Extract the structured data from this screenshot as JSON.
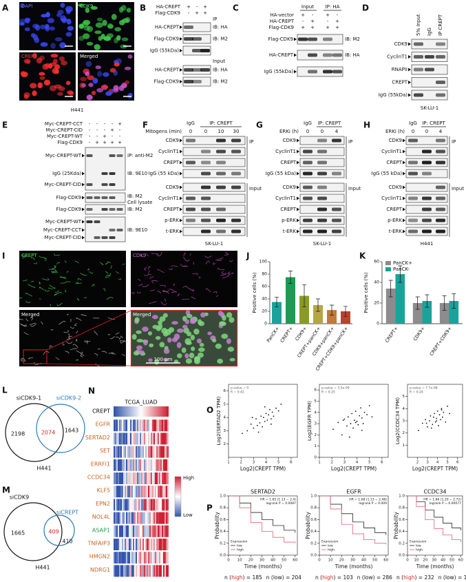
{
  "figure": {
    "A": {
      "letter": "A",
      "channels": [
        "DAPI",
        "CDK9",
        "CREPT",
        "Merged"
      ],
      "cell_line": "H441"
    },
    "B": {
      "letter": "B",
      "conditions": [
        {
          "label": "HA-CREPT",
          "signs": [
            "+",
            "-",
            "+"
          ]
        },
        {
          "label": "Flag-CDK9",
          "signs": [
            "-",
            "+",
            "+"
          ]
        }
      ],
      "blots": [
        {
          "label": "HA-CREPT",
          "ib": "IB: HA"
        },
        {
          "label": "Flag-CDK9",
          "ib": "IB: M2"
        },
        {
          "label": "IgG (55kDa)"
        },
        {
          "label": "HA-CREPT",
          "ib": "IB: HA"
        },
        {
          "label": "Flag-CDK9",
          "ib": "IB: M2"
        }
      ],
      "groups": [
        "IP",
        "Input"
      ]
    },
    "C": {
      "letter": "C",
      "headers": [
        "Input",
        "IP: HA"
      ],
      "conditions": [
        {
          "label": "HA-vector",
          "signs": [
            "+",
            "-",
            "+",
            "-"
          ]
        },
        {
          "label": "HA-CREPT",
          "signs": [
            "-",
            "+",
            "-",
            "+"
          ]
        },
        {
          "label": "Flag-CDK9",
          "signs": [
            "+",
            "+",
            "+",
            "+"
          ]
        }
      ],
      "blots": [
        {
          "label": "Flag-CDK9",
          "ib": "IB: M2"
        },
        {
          "label": "HA-CREPT",
          "ib": "IB: HA"
        },
        {
          "label": "IgG (55kDa)"
        }
      ]
    },
    "D": {
      "letter": "D",
      "lanes": [
        "5% Input",
        "IgG",
        "IP CREPT"
      ],
      "blots": [
        "CDK9",
        "CyclinT1",
        "RNAPII",
        "CREPT",
        "IgG (55kDa)"
      ],
      "cell_line": "SK-LU-1"
    },
    "E": {
      "letter": "E",
      "conditions": [
        {
          "label": "Myc-CREPT-CCT",
          "signs": [
            "-",
            "-",
            "-",
            "-",
            "+"
          ]
        },
        {
          "label": "Myc-CREPT-CID",
          "signs": [
            "-",
            "-",
            "-",
            "+",
            "-"
          ]
        },
        {
          "label": "Myc-CREPT-WT",
          "signs": [
            "-",
            "-",
            "+",
            "-",
            "-"
          ]
        },
        {
          "label": "Flag-CDK9",
          "signs": [
            "-",
            "+",
            "+",
            "+",
            "+"
          ]
        }
      ],
      "blots": [
        "Myc-CREPT-WT",
        "IgG (25Kda)",
        "Myc-CREPT-CID",
        "Flag-CDK9",
        "Flag-CDK9",
        "Myc-CREPT-WT",
        "Myc-CREPT-CCT",
        "Myc-CREPT-CID"
      ],
      "side": [
        "IP: anti-M2",
        "IB: 9E10",
        "IB: M2",
        "Cell lysate",
        "IB: M2",
        "IB: 9E10"
      ]
    },
    "F": {
      "letter": "F",
      "headers": [
        "IgG",
        "IP: CREPT"
      ],
      "treatment": {
        "label": "Mitogens (min)",
        "values": [
          "0",
          "0",
          "10",
          "30"
        ]
      },
      "ip_blots": [
        "CDK9",
        "CyclinT1",
        "CREPT",
        "IgG (55 kDa)"
      ],
      "input_blots": [
        "CDK9",
        "CyclinT1",
        "CREPT",
        "p-ERK",
        "t-ERK"
      ],
      "groups": [
        "IP",
        "Input"
      ],
      "cell_line": "SK-LU-1"
    },
    "G": {
      "letter": "G",
      "headers": [
        "IgG",
        "IP: CREPT"
      ],
      "treatment": {
        "label": "ERKi (h)",
        "values": [
          "0",
          "0",
          "4"
        ]
      },
      "ip_blots": [
        "CDK9",
        "CyclinT1",
        "CREPT",
        "IgG (55 kDa)"
      ],
      "input_blots": [
        "CDK9",
        "CyclinT1",
        "CREPT",
        "p-ERK",
        "t-ERK"
      ],
      "groups": [
        "IP",
        "Input"
      ],
      "cell_line": "SK-LU-1"
    },
    "H": {
      "letter": "H",
      "headers": [
        "IgG",
        "IP: CREPT"
      ],
      "treatment": {
        "label": "ERKi (h)",
        "values": [
          "0",
          "0",
          "4"
        ]
      },
      "ip_blots": [
        "CDK9",
        "CyclinT1",
        "CREPT",
        "IgG (55 kDa)"
      ],
      "input_blots": [
        "CDK9",
        "CyclinT1",
        "CREPT",
        "p-ERK",
        "t-ERK"
      ],
      "groups": [
        "IP",
        "Input"
      ],
      "cell_line": "H441"
    },
    "I": {
      "letter": "I",
      "labels": [
        "CREPT",
        "CDK9",
        "Merged",
        "Merged"
      ],
      "scale": "100 μm"
    },
    "L": {
      "letter": "L",
      "sets": [
        "siCDK9-1",
        "siCDK9-2"
      ],
      "counts": [
        2198,
        2074,
        1643
      ],
      "cell_line": "H441"
    },
    "M": {
      "letter": "M",
      "sets": [
        "siCDK9",
        "siCREPT"
      ],
      "counts": [
        1665,
        409,
        410
      ],
      "cell_line": "H441"
    },
    "N": {
      "letter": "N",
      "title": "TCGA_LUAD",
      "genes": [
        {
          "name": "CREPT",
          "color": "#000000"
        },
        {
          "name": "EGFR",
          "color": "#c8641e"
        },
        {
          "name": "SERTAD2",
          "color": "#c8641e"
        },
        {
          "name": "SET",
          "color": "#c8641e"
        },
        {
          "name": "ERRFI1",
          "color": "#c8641e"
        },
        {
          "name": "CCDC34",
          "color": "#c8641e"
        },
        {
          "name": "KLF5",
          "color": "#c8641e"
        },
        {
          "name": "EPN2",
          "color": "#c8641e"
        },
        {
          "name": "NOL4L",
          "color": "#c8641e"
        },
        {
          "name": "ASAP1",
          "color": "#2a9d4a"
        },
        {
          "name": "TNFAIP3",
          "color": "#c8641e"
        },
        {
          "name": "HMGN2",
          "color": "#c8641e"
        },
        {
          "name": "NDRG1",
          "color": "#c8641e"
        }
      ],
      "legend": [
        "High",
        "Low"
      ]
    },
    "O": {
      "letter": "O"
    },
    "P": {
      "letter": "P"
    }
  },
  "chart_data": [
    {
      "panel": "J",
      "type": "bar",
      "ylabel": "Positive cells (%)",
      "categories": [
        "PanCK+",
        "CREPT+",
        "CDK9+",
        "CREPT+panCK+",
        "CDK9+panCK+",
        "CREPT+CDK9+panCK+"
      ],
      "values": [
        35,
        75,
        45,
        30,
        22,
        20
      ],
      "errors": [
        8,
        10,
        18,
        10,
        8,
        8
      ],
      "colors": [
        "#1aa39a",
        "#1f9a54",
        "#8a9a2a",
        "#b5a642",
        "#c07a3a",
        "#b8432e"
      ],
      "ylim": [
        0,
        100
      ],
      "yticks": [
        0,
        20,
        40,
        60,
        80,
        100
      ]
    },
    {
      "panel": "K",
      "type": "grouped_bar",
      "ylabel": "Positive cells (%)",
      "categories": [
        "CREPT+",
        "CDK9+",
        "CREPT+CDK9+"
      ],
      "series": [
        {
          "name": "PanCK+",
          "color": "#8c8c8c",
          "values": [
            34,
            20,
            20
          ],
          "errors": [
            8,
            6,
            7
          ]
        },
        {
          "name": "PanCK-",
          "color": "#1aa39a",
          "values": [
            48,
            22,
            22
          ],
          "errors": [
            8,
            6,
            7
          ]
        }
      ],
      "ylim": [
        0,
        60
      ],
      "yticks": [
        0,
        20,
        40,
        60
      ],
      "legend": "top-left"
    },
    {
      "panel": "O",
      "type": "scatter",
      "ylabel": "Log2(SERTAD2 TPM)",
      "xlabel": "Log2(CREPT TPM)",
      "annotation": [
        "p-value = 0",
        "R = 0.42"
      ],
      "x": [
        2.1,
        2.5,
        2.8,
        3.0,
        3.2,
        3.3,
        3.5,
        3.6,
        3.7,
        3.8,
        3.9,
        4.0,
        4.1,
        4.2,
        4.3,
        4.4,
        4.5,
        4.6,
        4.8,
        5.0,
        5.2,
        3.4,
        3.9,
        4.4,
        2.9
      ],
      "y": [
        2.8,
        3.0,
        3.5,
        3.2,
        3.9,
        3.4,
        3.6,
        4.1,
        3.3,
        4.0,
        3.7,
        4.3,
        3.8,
        4.2,
        4.6,
        3.9,
        4.4,
        4.1,
        4.7,
        4.5,
        5.0,
        2.9,
        4.8,
        3.5,
        4.0
      ],
      "xlim": [
        1,
        6.5
      ],
      "xticks": [
        1,
        2,
        3,
        4,
        5,
        6
      ],
      "ylim": [
        1,
        6.5
      ],
      "yticks": [
        2,
        3,
        4,
        5,
        6
      ]
    },
    {
      "type": "scatter",
      "ylabel": "Log2(EGFR TPM)",
      "xlabel": "Log2(CREPT TPM)",
      "annotation": [
        "p-value = 3.5e-09",
        "R = 0.25"
      ],
      "x": [
        2.1,
        2.5,
        2.8,
        3.0,
        3.2,
        3.3,
        3.5,
        3.6,
        3.7,
        3.8,
        3.9,
        4.0,
        4.1,
        4.2,
        4.3,
        4.4,
        4.5,
        4.6,
        4.8,
        5.0,
        5.2,
        3.4,
        3.9,
        4.4,
        2.9
      ],
      "y": [
        2.5,
        3.1,
        2.0,
        3.4,
        2.8,
        3.6,
        3.0,
        3.9,
        2.6,
        3.3,
        4.1,
        3.2,
        2.9,
        3.7,
        4.4,
        3.5,
        3.0,
        4.0,
        3.8,
        4.6,
        3.6,
        1.8,
        3.1,
        2.4,
        3.3
      ],
      "xlim": [
        1,
        6.5
      ],
      "xticks": [
        1,
        2,
        3,
        4,
        5,
        6
      ],
      "ylim": [
        0,
        6.5
      ],
      "yticks": [
        0,
        1,
        2,
        3,
        4,
        5,
        6
      ]
    },
    {
      "type": "scatter",
      "ylabel": "Log2(CCDC34 TPM)",
      "xlabel": "Log2(CREPT TPM)",
      "annotation": [
        "p-value = 7.7e-08",
        "R = 0.24"
      ],
      "x": [
        2.1,
        2.5,
        2.8,
        3.0,
        3.2,
        3.3,
        3.5,
        3.6,
        3.7,
        3.8,
        3.9,
        4.0,
        4.1,
        4.2,
        4.3,
        4.4,
        4.5,
        4.6,
        4.8,
        5.0,
        5.2,
        3.4,
        3.9,
        4.4,
        2.9
      ],
      "y": [
        2.2,
        2.8,
        3.1,
        2.5,
        3.0,
        3.4,
        2.7,
        3.3,
        3.6,
        2.9,
        3.2,
        3.8,
        2.6,
        3.5,
        3.1,
        4.0,
        3.3,
        3.7,
        2.9,
        4.2,
        3.6,
        2.4,
        3.0,
        3.9,
        2.8
      ],
      "xlim": [
        1,
        6.5
      ],
      "xticks": [
        2,
        3,
        4,
        5,
        6
      ],
      "ylim": [
        0,
        6
      ],
      "yticks": [
        1,
        2,
        3,
        4,
        5
      ]
    },
    {
      "panel": "P",
      "type": "km",
      "title": "SERTAD2",
      "ylabel": "Probability",
      "xlabel": "Time (months)",
      "annotation": [
        "HR = 1.65 (1.13 − 2.4)",
        "logrank P = 0.0087"
      ],
      "legend_title": "Expression",
      "x": [
        0,
        10,
        20,
        30,
        40,
        50,
        60
      ],
      "series": [
        {
          "name": "low",
          "color": "#222222",
          "values": [
            1,
            0.88,
            0.72,
            0.6,
            0.5,
            0.42,
            0.38
          ]
        },
        {
          "name": "high",
          "color": "#e06070",
          "values": [
            1,
            0.8,
            0.55,
            0.4,
            0.3,
            0.22,
            0.2
          ]
        }
      ],
      "xlim": [
        0,
        62
      ],
      "xticks": [
        0,
        10,
        20,
        30,
        40,
        50,
        60
      ],
      "ylim": [
        0,
        1
      ],
      "yticks": [
        {
          "value": 0,
          "label": "0.0"
        },
        0.2,
        0.4,
        0.6,
        0.8,
        {
          "value": 1,
          "label": "1.0"
        }
      ],
      "n_label": [
        "n (",
        "high",
        ") = 185",
        "n (low) = 204"
      ]
    },
    {
      "type": "km",
      "title": "EGFR",
      "ylabel": "Probability",
      "xlabel": "Time (months)",
      "annotation": [
        "HR = 1.68 (1.13 − 2.48)",
        "logrank P = 0.009"
      ],
      "legend_title": "Expression",
      "x": [
        0,
        10,
        20,
        30,
        40,
        50,
        60
      ],
      "series": [
        {
          "name": "low",
          "color": "#222222",
          "values": [
            1,
            0.86,
            0.7,
            0.56,
            0.46,
            0.38,
            0.34
          ]
        },
        {
          "name": "high",
          "color": "#e06070",
          "values": [
            1,
            0.78,
            0.52,
            0.36,
            0.26,
            0.2,
            0.18
          ]
        }
      ],
      "xlim": [
        0,
        62
      ],
      "xticks": [
        0,
        10,
        20,
        30,
        40,
        50,
        60
      ],
      "ylim": [
        0,
        1
      ],
      "yticks": [
        {
          "value": 0,
          "label": "0.0"
        },
        0.2,
        0.4,
        0.6,
        0.8,
        {
          "value": 1,
          "label": "1.0"
        }
      ],
      "n_label": [
        "n (",
        "high",
        ") = 103",
        "n (low) = 286"
      ]
    },
    {
      "type": "km",
      "title": "CCDC34",
      "ylabel": "Probability",
      "xlabel": "Time (months)",
      "annotation": [
        "HR = 1.66 (1.20 − 2.72)",
        "logrank P = 0.00077"
      ],
      "legend_title": "Expression",
      "x": [
        0,
        10,
        20,
        30,
        40,
        50,
        60
      ],
      "series": [
        {
          "name": "low",
          "color": "#222222",
          "values": [
            1,
            0.9,
            0.76,
            0.64,
            0.54,
            0.46,
            0.42
          ]
        },
        {
          "name": "high",
          "color": "#e06070",
          "values": [
            1,
            0.82,
            0.6,
            0.45,
            0.34,
            0.26,
            0.22
          ]
        }
      ],
      "xlim": [
        0,
        62
      ],
      "xticks": [
        0,
        10,
        20,
        30,
        40,
        50,
        60
      ],
      "ylim": [
        0,
        1
      ],
      "yticks": [
        {
          "value": 0,
          "label": "0.0"
        },
        0.2,
        0.4,
        0.6,
        0.8,
        {
          "value": 1,
          "label": "1.0"
        }
      ],
      "n_label": [
        "n (",
        "high",
        ") = 232",
        "n (low) = 157"
      ]
    }
  ]
}
